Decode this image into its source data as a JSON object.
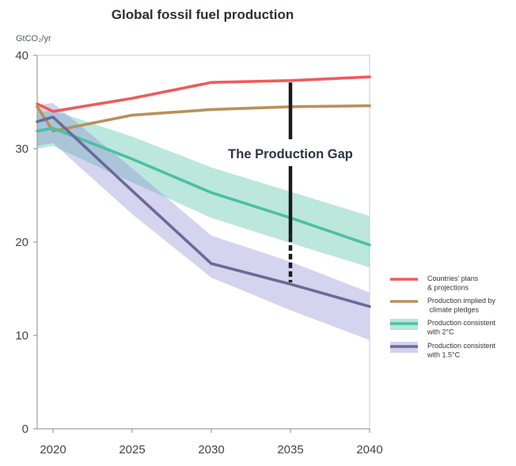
{
  "chart_data": {
    "type": "line",
    "title": "Global fossil fuel production",
    "ylabel": "GtCO₂/yr",
    "xlabel": "",
    "xlim": [
      2019,
      2040
    ],
    "ylim": [
      0,
      40
    ],
    "xticks": [
      2020,
      2025,
      2030,
      2035,
      2040
    ],
    "yticks": [
      0,
      10,
      20,
      30,
      40
    ],
    "grid": false,
    "legend_position": "right",
    "annotation": "The Production Gap",
    "series": [
      {
        "name": "Countries' plans & projections",
        "legend_lines": [
          "Countries' plans",
          "& projections"
        ],
        "color": "#ef5b5b",
        "x": [
          2019,
          2020,
          2025,
          2030,
          2035,
          2040
        ],
        "y": [
          34.8,
          34.0,
          35.4,
          37.1,
          37.3,
          37.7
        ]
      },
      {
        "name": "Production implied by climate pledges",
        "legend_lines": [
          "Production implied by",
          " climate pledges"
        ],
        "color": "#b8915a",
        "x": [
          2019,
          2020,
          2025,
          2030,
          2035,
          2040
        ],
        "y": [
          34.5,
          31.9,
          33.6,
          34.2,
          34.5,
          34.6
        ]
      },
      {
        "name": "Production consistent with 2°C",
        "legend_lines": [
          "Production consistent",
          "with 2°C"
        ],
        "color": "#4dbfa3",
        "band_color": "#4dbfa3",
        "x": [
          2019,
          2020,
          2025,
          2030,
          2035,
          2040
        ],
        "y": [
          31.9,
          32.2,
          28.9,
          25.3,
          22.6,
          19.7
        ],
        "band_lower": [
          30.0,
          30.3,
          26.4,
          22.6,
          19.9,
          17.3
        ],
        "band_upper": [
          33.9,
          34.1,
          31.3,
          28.0,
          25.4,
          22.8
        ]
      },
      {
        "name": "Production consistent with 1.5°C",
        "legend_lines": [
          "Production consistent",
          "with 1.5°C"
        ],
        "color": "#6a6a9a",
        "band_color": "#8f8fd2",
        "x": [
          2019,
          2020,
          2025,
          2030,
          2035,
          2040
        ],
        "y": [
          32.9,
          33.4,
          25.5,
          17.7,
          15.5,
          13.1
        ],
        "band_lower": [
          30.3,
          30.6,
          23.0,
          16.2,
          12.7,
          9.5
        ],
        "band_upper": [
          34.7,
          34.9,
          27.9,
          20.7,
          17.9,
          14.6
        ]
      }
    ]
  }
}
